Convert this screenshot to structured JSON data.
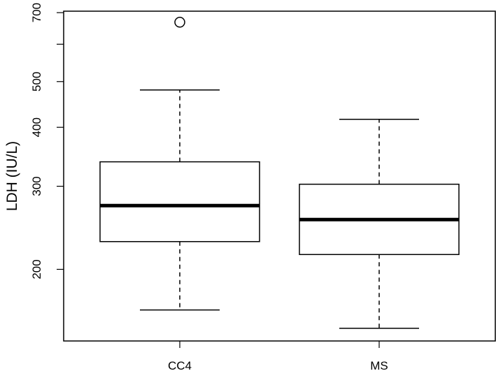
{
  "chart_data": {
    "type": "box",
    "y_label": "LDH (IU/L)",
    "log_scale": true,
    "categories": [
      "CC4",
      "MS"
    ],
    "boxes": [
      {
        "min": 164,
        "q1": 229,
        "median": 273,
        "q3": 338,
        "max": 480,
        "outliers": [
          668
        ]
      },
      {
        "min": 150,
        "q1": 215,
        "median": 255,
        "q3": 303,
        "max": 416,
        "outliers": []
      }
    ],
    "ylim": [
      141,
      705
    ],
    "yticks": [
      200,
      300,
      400,
      500,
      {
        "value": 600,
        "label": null
      },
      700
    ]
  }
}
